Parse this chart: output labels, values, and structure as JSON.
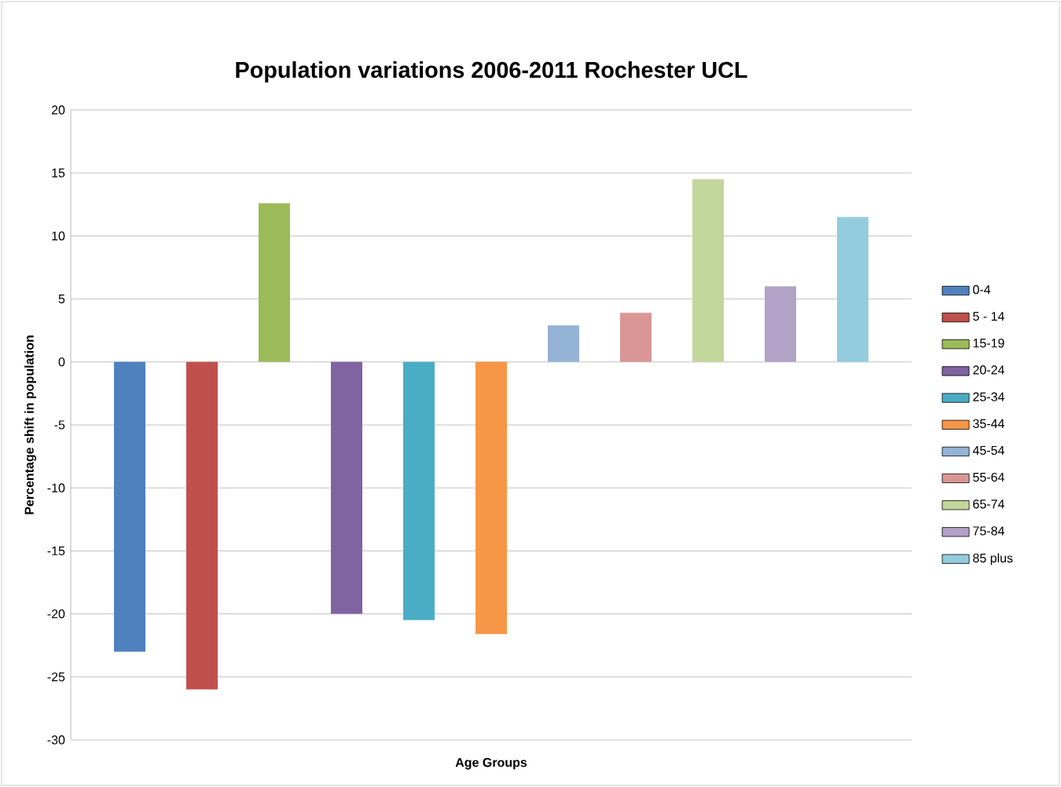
{
  "chart_data": {
    "type": "bar",
    "title": "Population variations 2006-2011 Rochester UCL",
    "xlabel": "Age Groups",
    "ylabel": "Percentage shift in population",
    "categories": [
      null
    ],
    "series": [
      {
        "name": "0-4",
        "color": "#4f81bd",
        "values": [
          -23
        ]
      },
      {
        "name": "5 - 14",
        "color": "#c0504d",
        "values": [
          -26
        ]
      },
      {
        "name": "15-19",
        "color": "#9bbb59",
        "values": [
          12.6
        ]
      },
      {
        "name": "20-24",
        "color": "#8064a2",
        "values": [
          -20
        ]
      },
      {
        "name": "25-34",
        "color": "#4bacc6",
        "values": [
          -20.5
        ]
      },
      {
        "name": "35-44",
        "color": "#f79646",
        "values": [
          -21.6
        ]
      },
      {
        "name": "45-54",
        "color": "#95b3d7",
        "values": [
          2.9
        ]
      },
      {
        "name": "55-64",
        "color": "#d99694",
        "values": [
          3.9
        ]
      },
      {
        "name": "65-74",
        "color": "#c3d69b",
        "values": [
          14.5
        ]
      },
      {
        "name": "75-84",
        "color": "#b3a2c7",
        "values": [
          6.0
        ]
      },
      {
        "name": "85 plus",
        "color": "#93cddd",
        "values": [
          11.5
        ]
      }
    ],
    "ylim": [
      -30,
      20
    ],
    "yticks": [
      -30,
      -25,
      -20,
      -15,
      -10,
      -5,
      0,
      5,
      10,
      15,
      20
    ],
    "grid": "y",
    "legend": "right"
  }
}
